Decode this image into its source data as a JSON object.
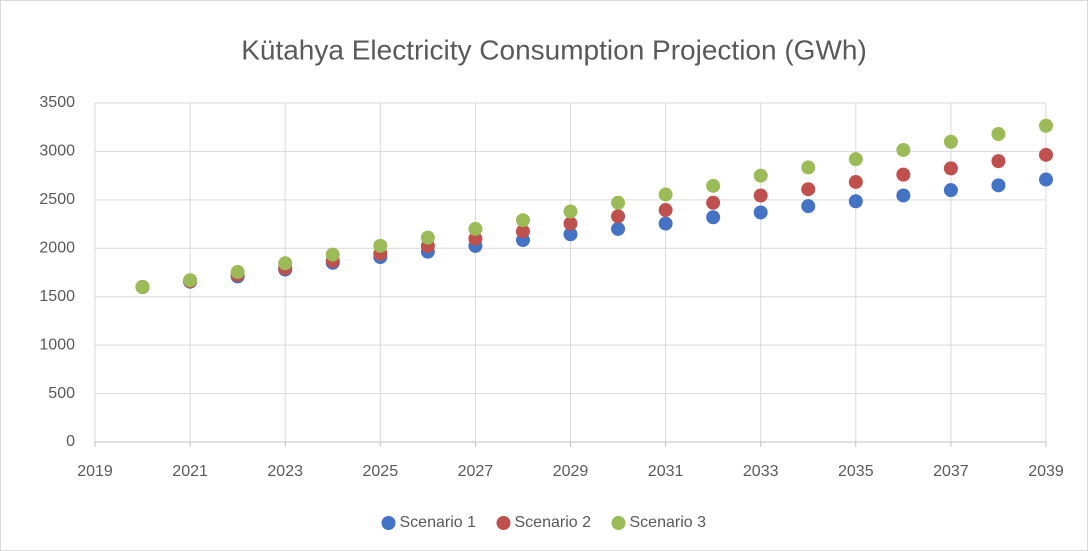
{
  "chart_data": {
    "type": "scatter",
    "title": "Kütahya Electricity Consumption Projection (GWh)",
    "x": [
      2020,
      2021,
      2022,
      2023,
      2024,
      2025,
      2026,
      2027,
      2028,
      2029,
      2030,
      2031,
      2032,
      2033,
      2034,
      2035,
      2036,
      2037,
      2038,
      2039
    ],
    "series": [
      {
        "name": "Scenario 1",
        "color": "#4472c4",
        "values": [
          1600,
          1655,
          1710,
          1780,
          1850,
          1910,
          1965,
          2025,
          2085,
          2145,
          2200,
          2255,
          2320,
          2370,
          2435,
          2485,
          2545,
          2600,
          2650,
          2710
        ]
      },
      {
        "name": "Scenario 2",
        "color": "#c0504d",
        "values": [
          1600,
          1660,
          1725,
          1795,
          1870,
          1945,
          2025,
          2100,
          2175,
          2255,
          2330,
          2395,
          2470,
          2545,
          2610,
          2685,
          2760,
          2825,
          2900,
          2965
        ]
      },
      {
        "name": "Scenario 3",
        "color": "#9bbb59",
        "values": [
          1600,
          1670,
          1755,
          1845,
          1935,
          2025,
          2110,
          2200,
          2290,
          2380,
          2470,
          2555,
          2645,
          2750,
          2835,
          2920,
          3015,
          3100,
          3180,
          3265
        ]
      }
    ],
    "xlim": [
      2019,
      2039
    ],
    "xticks": [
      2019,
      2021,
      2023,
      2025,
      2027,
      2029,
      2031,
      2033,
      2035,
      2037,
      2039
    ],
    "ylim": [
      0,
      3500
    ],
    "yticks": [
      0,
      500,
      1000,
      1500,
      2000,
      2500,
      3000,
      3500
    ],
    "grid": true,
    "legend": "bottom"
  }
}
